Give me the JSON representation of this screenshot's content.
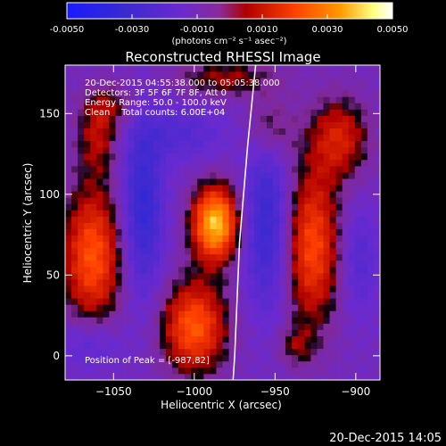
{
  "colorbar": {
    "tick_labels": [
      "-0.0050",
      "-0.0030",
      "-0.0010",
      "0.0010",
      "0.0030",
      "0.0050"
    ],
    "tick_values": [
      -0.005,
      -0.003,
      -0.001,
      0.001,
      0.003,
      0.005
    ],
    "range": [
      -0.005,
      0.005
    ],
    "units_label": "(photons cm⁻² s⁻¹ asec⁻²)",
    "colors": [
      "#1a1aff",
      "#3a2ad0",
      "#6a2ad0",
      "#8a2a9a",
      "#b00000",
      "#ff4000",
      "#ff9a00",
      "#ffff80",
      "#ffffff"
    ]
  },
  "title": "Reconstructed RHESSI Image",
  "annotations": {
    "time_range": "20-Dec-2015 04:55:38.000 to 05:05:38.000",
    "detectors": "Detectors: 3F 5F 6F 7F 8F, Att 0",
    "energy": "Energy Range: 50.0 - 100.0 keV",
    "clean": "Clean    Total counts: 6.00E+04",
    "peak": "Position of Peak = [-987,82]"
  },
  "footer_timestamp": "20-Dec-2015 14:05",
  "chart_data": {
    "type": "heatmap",
    "title": "Reconstructed RHESSI Image",
    "xlabel": "Heliocentric X (arcsec)",
    "ylabel": "Heliocentric Y (arcsec)",
    "xlim": [
      -1080,
      -885
    ],
    "ylim": [
      -15,
      180
    ],
    "x_ticks": [
      -1050,
      -1000,
      -950,
      -900
    ],
    "x_tick_labels": [
      "−1050",
      "−1000",
      "−950",
      "−900"
    ],
    "y_ticks": [
      0,
      50,
      100,
      150
    ],
    "y_tick_labels": [
      "0",
      "50",
      "100",
      "150"
    ],
    "colorbar_range": [
      -0.005,
      0.005
    ],
    "units": "photons cm^-2 s^-1 asec^-2",
    "peak_position": [
      -987,
      82
    ],
    "sources": [
      {
        "x": -987,
        "y": 82,
        "sx": 10,
        "sy": 16,
        "amp": 0.005
      },
      {
        "x": -1063,
        "y": 62,
        "sx": 13,
        "sy": 30,
        "amp": 0.0033
      },
      {
        "x": -1000,
        "y": 18,
        "sx": 14,
        "sy": 20,
        "amp": 0.0034
      },
      {
        "x": -927,
        "y": 68,
        "sx": 12,
        "sy": 34,
        "amp": 0.0031
      },
      {
        "x": -910,
        "y": 135,
        "sx": 13,
        "sy": 18,
        "amp": 0.0022
      },
      {
        "x": -1060,
        "y": 135,
        "sx": 9,
        "sy": 16,
        "amp": 0.0016
      },
      {
        "x": -1052,
        "y": 155,
        "sx": 12,
        "sy": 10,
        "amp": 0.0012
      },
      {
        "x": -980,
        "y": 172,
        "sx": 22,
        "sy": 8,
        "amp": 0.0016
      },
      {
        "x": -953,
        "y": 142,
        "sx": 10,
        "sy": 14,
        "amp": 0.0014
      },
      {
        "x": -937,
        "y": 6,
        "sx": 8,
        "sy": 9,
        "amp": 0.0012
      },
      {
        "x": -955,
        "y": 82,
        "sx": 10,
        "sy": 38,
        "amp": -0.0022
      },
      {
        "x": -1032,
        "y": 92,
        "sx": 9,
        "sy": 38,
        "amp": -0.0024
      },
      {
        "x": -1008,
        "y": 138,
        "sx": 18,
        "sy": 12,
        "amp": -0.0012
      },
      {
        "x": -1065,
        "y": 8,
        "sx": 14,
        "sy": 12,
        "amp": -0.0012
      },
      {
        "x": -898,
        "y": 60,
        "sx": 8,
        "sy": 24,
        "amp": -0.0012
      }
    ],
    "limb_line": [
      [
        -962,
        180
      ],
      [
        -967,
        130
      ],
      [
        -972,
        70
      ],
      [
        -975,
        0
      ],
      [
        -976,
        -15
      ]
    ]
  }
}
